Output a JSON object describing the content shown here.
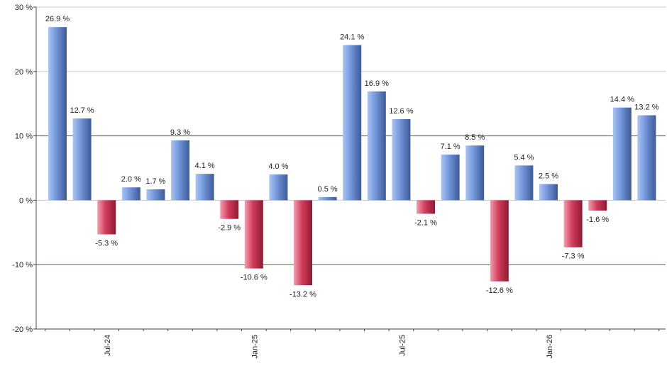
{
  "chart_data": {
    "type": "bar",
    "values": [
      26.9,
      12.7,
      -5.3,
      2.0,
      1.7,
      9.3,
      4.1,
      -2.9,
      -10.6,
      4.0,
      -13.2,
      0.5,
      24.1,
      16.9,
      12.6,
      -2.1,
      7.1,
      8.5,
      -12.6,
      5.4,
      2.5,
      -7.3,
      -1.6,
      14.4,
      13.2
    ],
    "data_labels": [
      "26.9 %",
      "12.7 %",
      "-5.3 %",
      "2.0 %",
      "1.7 %",
      "9.3 %",
      "4.1 %",
      "-2.9 %",
      "-10.6 %",
      "4.0 %",
      "-13.2 %",
      "0.5 %",
      "24.1 %",
      "16.9 %",
      "12.6 %",
      "-2.1 %",
      "7.1 %",
      "8.5 %",
      "-12.6 %",
      "5.4 %",
      "2.5 %",
      "-7.3 %",
      "-1.6 %",
      "14.4 %",
      "13.2 %"
    ],
    "x_ticks": [
      {
        "label": "Jul-24",
        "index": 2
      },
      {
        "label": "Jan-25",
        "index": 8
      },
      {
        "label": "Jul-25",
        "index": 14
      },
      {
        "label": "Jan-26",
        "index": 20
      }
    ],
    "y_ticks": [
      {
        "value": 30,
        "label": "30 %"
      },
      {
        "value": 20,
        "label": "20 %"
      },
      {
        "value": 10,
        "label": "10 %"
      },
      {
        "value": 0,
        "label": "0 %"
      },
      {
        "value": -10,
        "label": "-10 %"
      },
      {
        "value": -20,
        "label": "-20 %"
      }
    ],
    "ylim": [
      -20,
      30
    ],
    "reference_lines": [
      10,
      -10
    ],
    "grid": true,
    "title": "",
    "xlabel": "",
    "ylabel": "",
    "colors": {
      "positive_light": "#aac4f2",
      "positive_mid": "#7094d8",
      "positive_dark": "#3d5a96",
      "negative_light": "#f0a0b0",
      "negative_mid": "#d23c5c",
      "negative_dark": "#8c1c34",
      "gridline": "#c8c8c8",
      "reference_line": "#2e7d2e",
      "axis": "#444444"
    }
  }
}
